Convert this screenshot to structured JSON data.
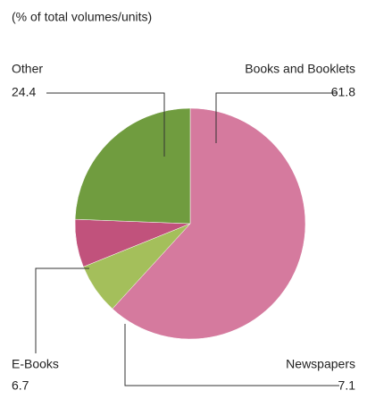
{
  "chart_data": {
    "type": "pie",
    "subtitle": "(% of total volumes/units)",
    "categories": [
      "Books and Booklets",
      "Newspapers",
      "E-Books",
      "Other"
    ],
    "values": [
      61.8,
      7.1,
      6.7,
      24.4
    ],
    "colors": [
      "#d57a9e",
      "#a4bf5b",
      "#c1527c",
      "#709c3f"
    ]
  }
}
